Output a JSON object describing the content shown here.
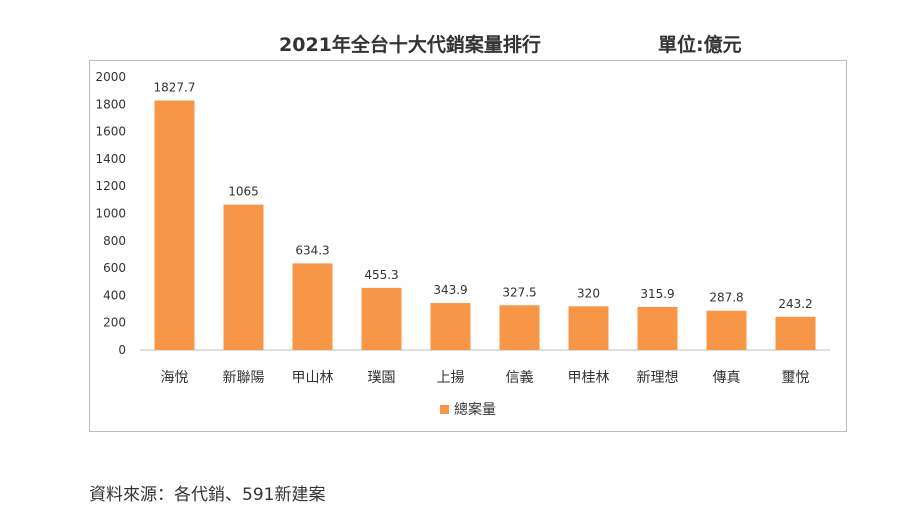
{
  "title": "2021年全台十大代銷案量排行",
  "unit_label": "單位:億元",
  "source_note": "資料來源：各代銷、591新建案",
  "colors": {
    "bar": "#F79646",
    "axis": "#bfbfbf",
    "text": "#333333"
  },
  "chart_data": {
    "type": "bar",
    "title": "2021年全台十大代銷案量排行",
    "xlabel": "",
    "ylabel": "",
    "ylim": [
      0,
      2000
    ],
    "yticks": [
      0,
      200,
      400,
      600,
      800,
      1000,
      1200,
      1400,
      1600,
      1800,
      2000
    ],
    "grid": false,
    "legend": "bottom",
    "categories": [
      "海悅",
      "新聯陽",
      "甲山林",
      "璞園",
      "上揚",
      "信義",
      "甲桂林",
      "新理想",
      "傳真",
      "璽悅"
    ],
    "series": [
      {
        "name": "總案量",
        "values": [
          1827.7,
          1065,
          634.3,
          455.3,
          343.9,
          327.5,
          320,
          315.9,
          287.8,
          243.2
        ],
        "labels": [
          "1827.7",
          "1065",
          "634.3",
          "455.3",
          "343.9",
          "327.5",
          "320",
          "315.9",
          "287.8",
          "243.2"
        ]
      }
    ]
  }
}
